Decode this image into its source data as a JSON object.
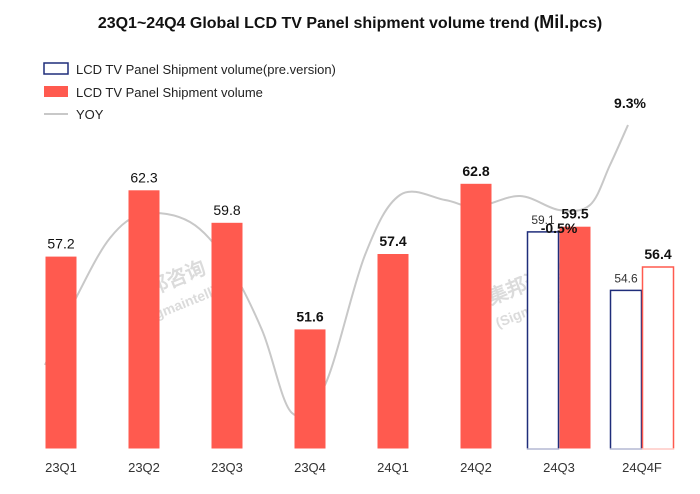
{
  "chart_data": {
    "type": "bar",
    "title_main": "23Q1~24Q4 Global LCD TV Panel shipment volume trend (",
    "title_unit": "Mil.",
    "title_tail": "pcs)",
    "categories": [
      "23Q1",
      "23Q2",
      "23Q3",
      "23Q4",
      "24Q1",
      "24Q2",
      "24Q3",
      "24Q4F"
    ],
    "series": [
      {
        "name": "LCD TV Panel Shipment volume(pre.version)",
        "style": "outline",
        "color": "#1f2d7a",
        "values": [
          null,
          null,
          null,
          null,
          null,
          null,
          59.1,
          54.6
        ]
      },
      {
        "name": "LCD TV Panel Shipment volume",
        "style": "filled",
        "color": "#ff5a4f",
        "values": [
          57.2,
          62.3,
          59.8,
          51.6,
          57.4,
          62.8,
          59.5,
          56.4
        ],
        "forecast_index": 7
      },
      {
        "name": "YOY",
        "type": "line",
        "color": "#c8c8c8",
        "values": [
          null,
          null,
          null,
          null,
          null,
          null,
          -0.5,
          9.3
        ],
        "value_labels": [
          "",
          "",
          "",
          "",
          "",
          "",
          "-0.5%",
          "9.3%"
        ]
      }
    ],
    "value_labels": [
      "57.2",
      "62.3",
      "59.8",
      "51.6",
      "57.4",
      "62.8",
      "59.5",
      "56.4"
    ],
    "pre_version_labels": [
      "",
      "",
      "",
      "",
      "",
      "",
      "59.1",
      "54.6"
    ],
    "bold_labels_from_index": 3,
    "ylim": [
      45,
      66
    ],
    "grid": false,
    "legend_position": "top-left"
  },
  "watermark": "集邦咨询 (Sigmaintell)"
}
